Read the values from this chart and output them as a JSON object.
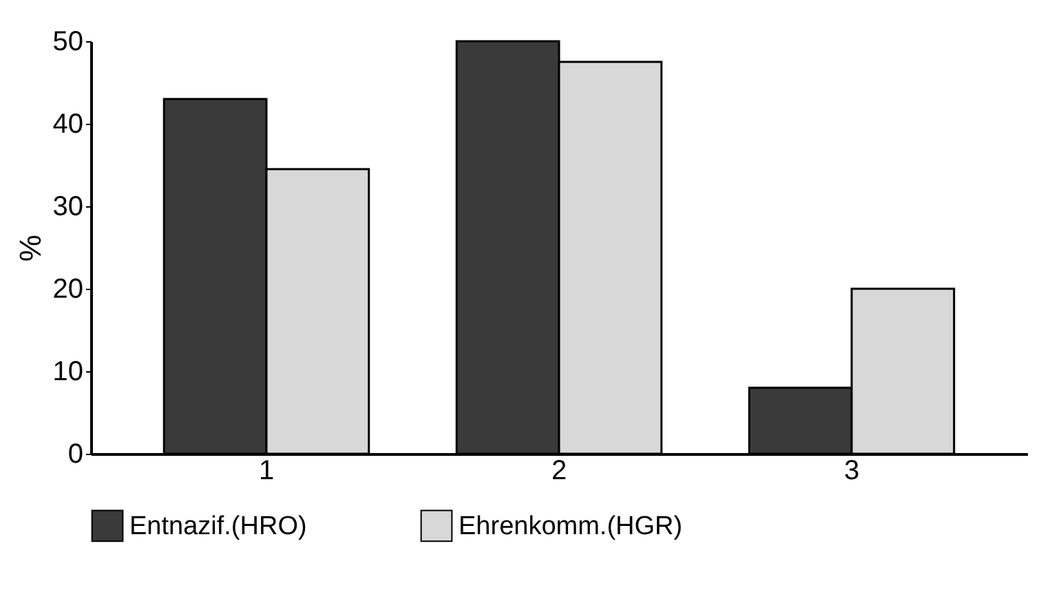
{
  "chart_data": {
    "type": "bar",
    "ylabel": "%",
    "categories": [
      "1",
      "2",
      "3"
    ],
    "series": [
      {
        "name": "Entnazif.(HRO)",
        "color": "#3a3a3a",
        "values": [
          43,
          50,
          8
        ]
      },
      {
        "name": "Ehrenkomm.(HGR)",
        "color": "#d8d8d8",
        "values": [
          34.5,
          47.5,
          20
        ]
      }
    ],
    "ylim": [
      0,
      50
    ],
    "yticks": [
      0,
      10,
      20,
      30,
      40,
      50
    ],
    "grid": false,
    "legend": "bottom"
  }
}
